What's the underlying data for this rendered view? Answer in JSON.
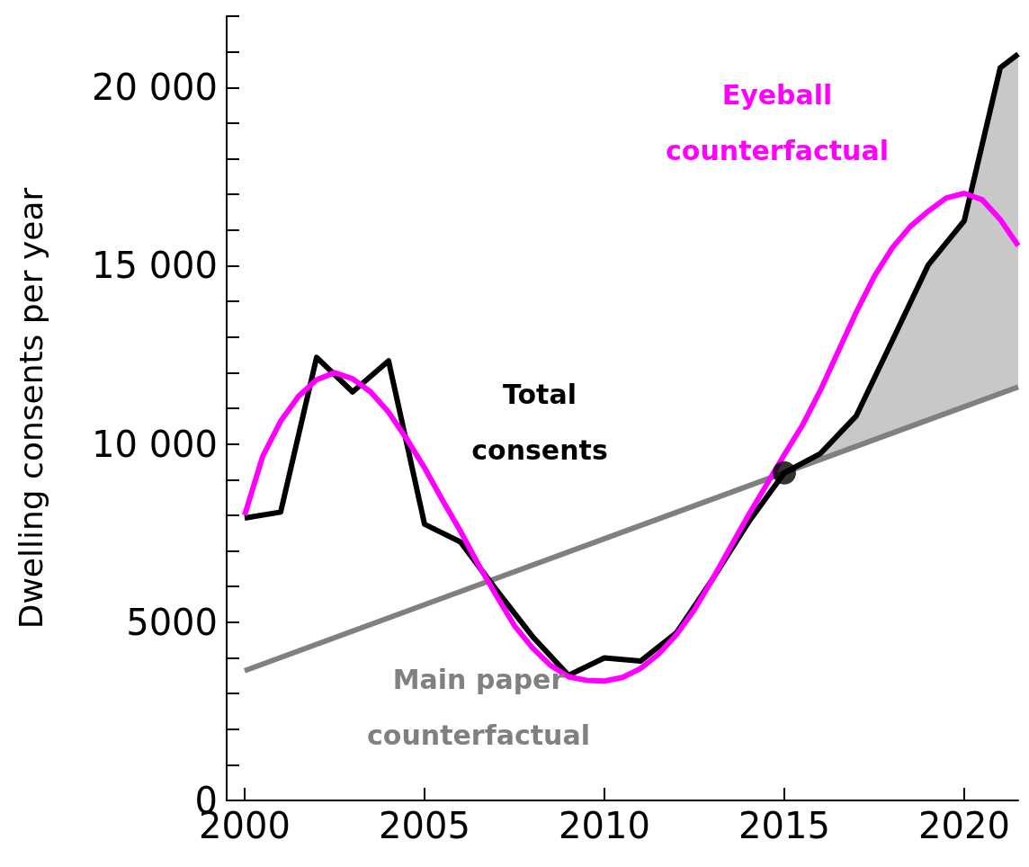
{
  "chart_data": {
    "type": "line",
    "ylabel": "Dwelling consents per year",
    "xlim": [
      1999.5,
      2021.5
    ],
    "xticks": [
      2000,
      2005,
      2010,
      2015,
      2020
    ],
    "ylim": [
      0,
      22000
    ],
    "yticks": [
      0,
      {
        "value": 1000,
        "label": null
      },
      {
        "value": 2000,
        "label": null
      },
      {
        "value": 3000,
        "label": null
      },
      {
        "value": 4000,
        "label": null
      },
      5000,
      {
        "value": 6000,
        "label": null
      },
      {
        "value": 7000,
        "label": null
      },
      {
        "value": 8000,
        "label": null
      },
      {
        "value": 9000,
        "label": null
      },
      {
        "value": 10000,
        "label": "10 000"
      },
      {
        "value": 11000,
        "label": null
      },
      {
        "value": 12000,
        "label": null
      },
      {
        "value": 13000,
        "label": null
      },
      {
        "value": 14000,
        "label": null
      },
      {
        "value": 15000,
        "label": "15 000"
      },
      {
        "value": 16000,
        "label": null
      },
      {
        "value": 17000,
        "label": null
      },
      {
        "value": 18000,
        "label": null
      },
      {
        "value": 19000,
        "label": null
      },
      {
        "value": 20000,
        "label": "20 000"
      },
      {
        "value": 21000,
        "label": null
      },
      {
        "value": 22000,
        "label": null
      }
    ],
    "grid": false,
    "legend": false,
    "marker": "none",
    "series": [
      {
        "name": "Main paper counterfactual",
        "color": "#808080",
        "x": [
          2000,
          2021.5
        ],
        "values": [
          3640,
          11600
        ]
      },
      {
        "name": "Total consents",
        "color": "#000000",
        "x": [
          2000,
          2001,
          2002,
          2003,
          2004,
          2005,
          2006,
          2007,
          2008,
          2009,
          2010,
          2011,
          2012,
          2013,
          2014,
          2015,
          2016,
          2017,
          2018,
          2019,
          2020,
          2021,
          2021.5
        ],
        "values": [
          7920,
          8090,
          12430,
          11460,
          12330,
          7750,
          7250,
          5900,
          4600,
          3510,
          4000,
          3910,
          4700,
          6200,
          7800,
          9190,
          9730,
          10790,
          12900,
          15020,
          16260,
          20550,
          20940
        ],
        "lower": [
          null,
          null,
          null,
          null,
          null,
          null,
          null,
          null,
          null,
          null,
          null,
          null,
          null,
          null,
          null,
          9190,
          9560,
          9930,
          10300,
          10670,
          11040,
          11410,
          11600
        ],
        "upper": [
          null,
          null,
          null,
          null,
          null,
          null,
          null,
          null,
          null,
          null,
          null,
          null,
          null,
          null,
          null,
          9190,
          9730,
          10790,
          12900,
          15020,
          16260,
          20550,
          20940
        ]
      },
      {
        "name": "Eyeball counterfactual",
        "color": "#ff00ff",
        "x": [
          2000,
          2000.5,
          2001,
          2001.5,
          2002,
          2002.5,
          2003,
          2003.5,
          2004,
          2004.5,
          2005,
          2005.5,
          2006,
          2006.5,
          2007,
          2007.5,
          2008,
          2008.5,
          2009,
          2009.5,
          2010,
          2010.5,
          2011,
          2011.5,
          2012,
          2012.5,
          2013,
          2013.5,
          2014,
          2014.5,
          2015,
          2015.5,
          2016,
          2016.5,
          2017,
          2017.5,
          2018,
          2018.5,
          2019,
          2019.5,
          2020,
          2020.5,
          2021,
          2021.5
        ],
        "values": [
          8000,
          9650,
          10640,
          11340,
          11800,
          12000,
          11830,
          11460,
          10890,
          10150,
          9330,
          8420,
          7550,
          6610,
          5740,
          4900,
          4280,
          3790,
          3470,
          3370,
          3350,
          3450,
          3700,
          4100,
          4650,
          5350,
          6200,
          7100,
          8000,
          8850,
          9700,
          10520,
          11500,
          12600,
          13700,
          14700,
          15500,
          16100,
          16530,
          16900,
          17030,
          16850,
          16300,
          15560
        ]
      },
      {
        "type": "scatter",
        "marker": "circle",
        "color": "#000000",
        "x": [
          2015
        ],
        "values": [
          9190
        ]
      }
    ]
  }
}
